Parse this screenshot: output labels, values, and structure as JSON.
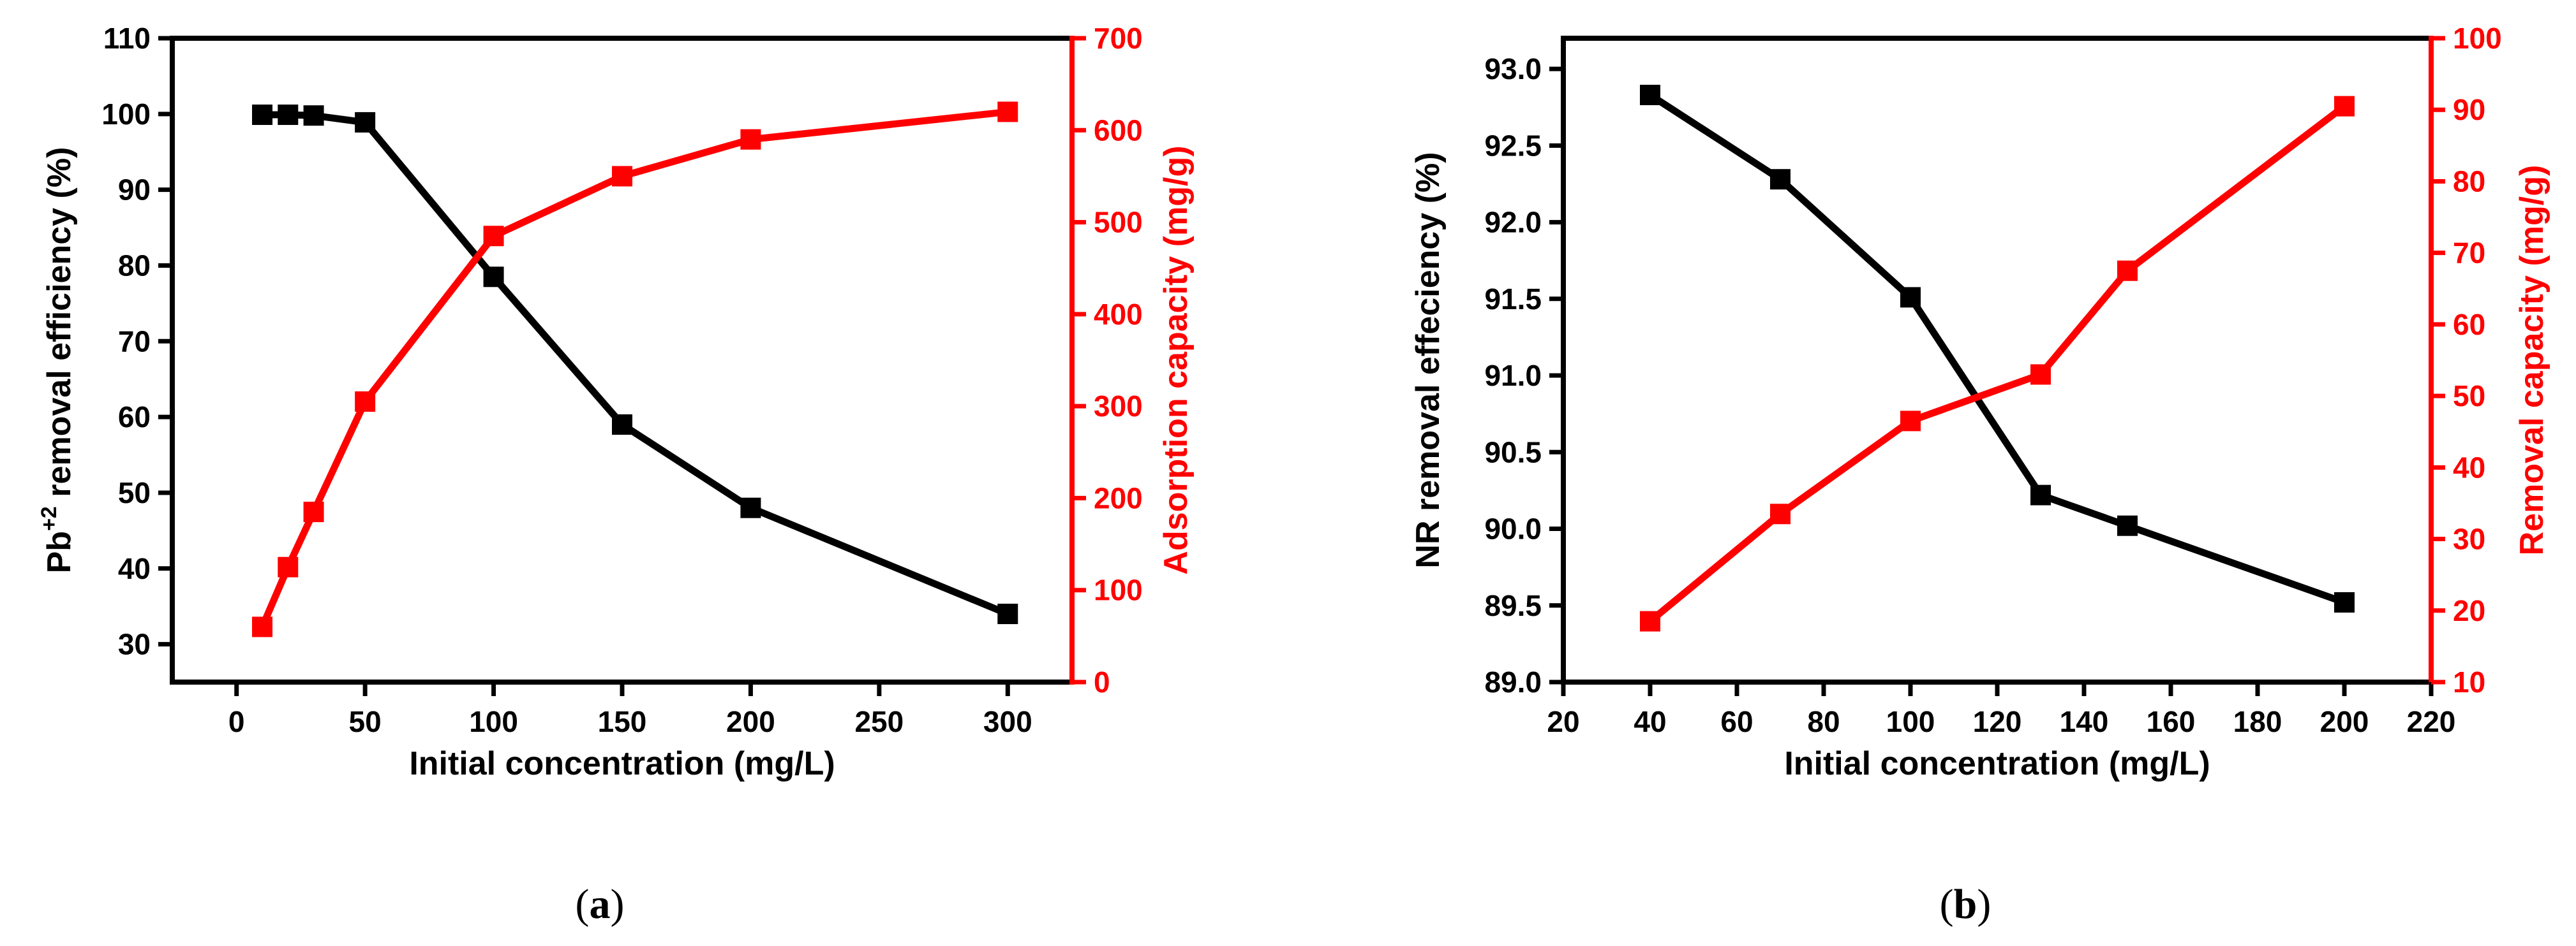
{
  "chart_data": [
    {
      "type": "line",
      "caption": "(a)",
      "caption_parts": {
        "open": "(",
        "letter": "a",
        "close": ")"
      },
      "xlabel": "Initial concentration (mg/L)",
      "ylabel_left": {
        "base": "Pb",
        "sup": "+2",
        "rest": " removal efficiency (%)"
      },
      "ylabel_right": "Adsorption capacity (mg/g)",
      "xlim": [
        -25,
        325
      ],
      "ylim_left": [
        25,
        110
      ],
      "ylim_right": [
        0,
        700
      ],
      "x_ticks": [
        "0",
        "50",
        "100",
        "150",
        "200",
        "250",
        "300"
      ],
      "y_left_ticks": [
        "30",
        "40",
        "50",
        "60",
        "70",
        "80",
        "90",
        "100",
        "110"
      ],
      "y_right_ticks": [
        "0",
        "100",
        "200",
        "300",
        "400",
        "500",
        "600",
        "700"
      ],
      "series": [
        {
          "name": "Pb+2 removal efficiency (%)",
          "axis": "left",
          "color": "#000000",
          "x": [
            10,
            20,
            30,
            50,
            100,
            150,
            200,
            300
          ],
          "values": [
            99.9,
            99.9,
            99.8,
            98.9,
            78.5,
            59.0,
            48.0,
            34.0
          ]
        },
        {
          "name": "Adsorption capacity (mg/g)",
          "axis": "right",
          "color": "#ff0000",
          "x": [
            10,
            20,
            30,
            50,
            100,
            150,
            200,
            300
          ],
          "values": [
            60,
            125,
            185,
            305,
            485,
            550,
            590,
            620
          ]
        }
      ]
    },
    {
      "type": "line",
      "caption": "(b)",
      "caption_parts": {
        "open": "(",
        "letter": "b",
        "close": ")"
      },
      "xlabel": "Initial concentration (mg/L)",
      "ylabel_left": {
        "base": "NR removal effeciency (%)",
        "sup": "",
        "rest": ""
      },
      "ylabel_right": "Removal capacity (mg/g)",
      "xlim": [
        20,
        220
      ],
      "ylim_left": [
        89.0,
        93.2
      ],
      "ylim_right": [
        10,
        100
      ],
      "x_ticks": [
        "20",
        "40",
        "60",
        "80",
        "100",
        "120",
        "140",
        "160",
        "180",
        "200",
        "220"
      ],
      "y_left_ticks": [
        "89.0",
        "89.5",
        "90.0",
        "90.5",
        "91.0",
        "91.5",
        "92.0",
        "92.5",
        "93.0"
      ],
      "y_right_ticks": [
        "10",
        "20",
        "30",
        "40",
        "50",
        "60",
        "70",
        "80",
        "90",
        "100"
      ],
      "series": [
        {
          "name": "NR removal effeciency (%)",
          "axis": "left",
          "color": "#000000",
          "x": [
            40,
            70,
            100,
            130,
            150,
            200
          ],
          "values": [
            92.83,
            92.28,
            91.51,
            90.22,
            90.02,
            89.52
          ]
        },
        {
          "name": "Removal capacity (mg/g)",
          "axis": "right",
          "color": "#ff0000",
          "x": [
            40,
            70,
            100,
            130,
            150,
            200
          ],
          "values": [
            18.5,
            33.5,
            46.5,
            53,
            67.5,
            90.5
          ]
        }
      ]
    }
  ]
}
